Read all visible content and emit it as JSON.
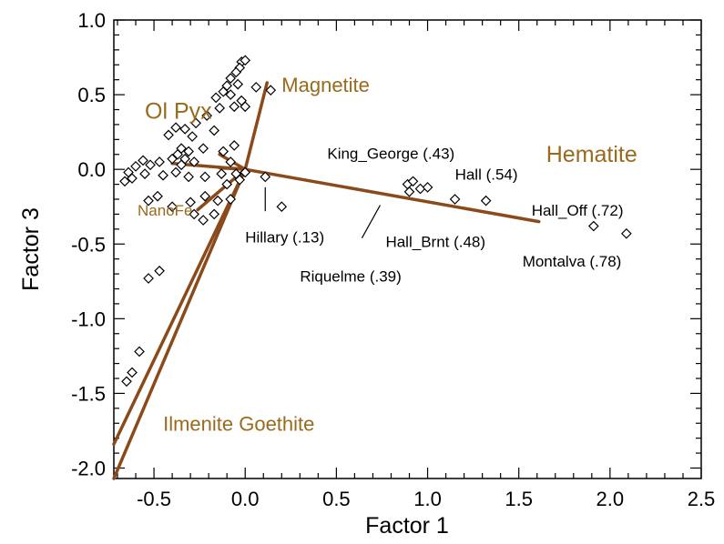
{
  "chart_data": {
    "type": "scatter",
    "xlabel": "Factor 1",
    "ylabel": "Factor 3",
    "xlim": [
      -0.72,
      2.5
    ],
    "ylim": [
      -2.07,
      1.0
    ],
    "x_ticks": [
      -0.5,
      0.0,
      0.5,
      1.0,
      1.5,
      2.0,
      2.5
    ],
    "x_tick_labels": [
      "-0.5",
      "0.0",
      "0.5",
      "1.0",
      "1.5",
      "2.0",
      "2.5"
    ],
    "y_ticks": [
      1.0,
      0.5,
      0.0,
      -0.5,
      -1.0,
      -1.5,
      -2.0
    ],
    "y_tick_labels": [
      "1.0",
      "0.5",
      "0.0",
      "-0.5",
      "-1.0",
      "-1.5",
      "-2.0"
    ],
    "grid": false,
    "colors": {
      "vector": "#8b4a1a",
      "mineral_label": "#9a6a1c",
      "points": "#000000"
    },
    "points": [
      [
        -0.02,
        0.72
      ],
      [
        0.0,
        0.73
      ],
      [
        -0.03,
        0.68
      ],
      [
        -0.05,
        0.65
      ],
      [
        -0.08,
        0.61
      ],
      [
        -0.04,
        0.57
      ],
      [
        -0.1,
        0.56
      ],
      [
        -0.12,
        0.52
      ],
      [
        0.06,
        0.55
      ],
      [
        0.14,
        0.53
      ],
      [
        -0.16,
        0.48
      ],
      [
        -0.08,
        0.5
      ],
      [
        -0.02,
        0.46
      ],
      [
        -0.06,
        0.42
      ],
      [
        0.0,
        0.42
      ],
      [
        -0.14,
        0.41
      ],
      [
        -0.21,
        0.36
      ],
      [
        -0.27,
        0.31
      ],
      [
        -0.33,
        0.27
      ],
      [
        -0.38,
        0.28
      ],
      [
        -0.42,
        0.23
      ],
      [
        -0.29,
        0.22
      ],
      [
        -0.17,
        0.26
      ],
      [
        -0.23,
        0.14
      ],
      [
        -0.06,
        0.16
      ],
      [
        -0.12,
        0.12
      ],
      [
        -0.35,
        0.14
      ],
      [
        -0.31,
        0.12
      ],
      [
        -0.37,
        0.1
      ],
      [
        -0.4,
        0.07
      ],
      [
        -0.33,
        0.07
      ],
      [
        -0.28,
        0.05
      ],
      [
        -0.35,
        0.03
      ],
      [
        -0.47,
        0.05
      ],
      [
        -0.56,
        0.06
      ],
      [
        -0.6,
        0.02
      ],
      [
        -0.64,
        -0.02
      ],
      [
        -0.55,
        -0.03
      ],
      [
        -0.52,
        0.03
      ],
      [
        -0.62,
        -0.06
      ],
      [
        -0.66,
        -0.08
      ],
      [
        -0.45,
        -0.04
      ],
      [
        -0.38,
        -0.02
      ],
      [
        -0.31,
        -0.05
      ],
      [
        -0.22,
        -0.05
      ],
      [
        -0.13,
        -0.03
      ],
      [
        -0.08,
        0.05
      ],
      [
        -0.05,
        -0.03
      ],
      [
        0.0,
        -0.02
      ],
      [
        -0.03,
        -0.07
      ],
      [
        -0.1,
        -0.1
      ],
      [
        -0.22,
        -0.18
      ],
      [
        -0.3,
        -0.22
      ],
      [
        -0.4,
        -0.25
      ],
      [
        -0.28,
        -0.3
      ],
      [
        -0.23,
        -0.34
      ],
      [
        -0.17,
        -0.3
      ],
      [
        -0.15,
        -0.21
      ],
      [
        -0.08,
        -0.2
      ],
      [
        -0.48,
        -0.18
      ],
      [
        -0.53,
        -0.21
      ],
      [
        0.11,
        -0.05
      ],
      [
        0.2,
        -0.25
      ],
      [
        0.89,
        -0.1
      ],
      [
        0.92,
        -0.08
      ],
      [
        0.96,
        -0.13
      ],
      [
        1.0,
        -0.12
      ],
      [
        1.15,
        -0.2
      ],
      [
        1.32,
        -0.21
      ],
      [
        0.9,
        -0.15
      ],
      [
        1.91,
        -0.38
      ],
      [
        2.09,
        -0.43
      ],
      [
        -0.47,
        -0.68
      ],
      [
        -0.53,
        -0.73
      ],
      [
        -0.58,
        -1.22
      ],
      [
        -0.62,
        -1.36
      ],
      [
        -0.65,
        -1.42
      ]
    ],
    "site_labels": [
      {
        "text": "King_George (.43)",
        "x": 0.45,
        "y": 0.07
      },
      {
        "text": "Hall (.54)",
        "x": 1.15,
        "y": -0.07
      },
      {
        "text": "Hall_Off (.72)",
        "x": 1.57,
        "y": -0.31
      },
      {
        "text": "Hillary (.13)",
        "x": 0.0,
        "y": -0.49
      },
      {
        "text": "Hall_Brnt (.48)",
        "x": 0.77,
        "y": -0.52
      },
      {
        "text": "Riquelme (.39)",
        "x": 0.3,
        "y": -0.75
      },
      {
        "text": "Montalva (.78)",
        "x": 1.52,
        "y": -0.65
      }
    ],
    "leader_lines": [
      [
        [
          0.11,
          -0.12
        ],
        [
          0.11,
          -0.28
        ]
      ],
      [
        [
          0.74,
          -0.24
        ],
        [
          0.64,
          -0.46
        ]
      ]
    ],
    "loading_vectors": [
      {
        "name": "Magnetite",
        "x": 0.12,
        "y": 0.58
      },
      {
        "name": "Hematite",
        "x": 1.61,
        "y": -0.35
      },
      {
        "name": "Ol Pyx",
        "x": -0.4,
        "y": 0.04
      },
      {
        "name": "NanoFe",
        "x": -0.26,
        "y": -0.27
      },
      {
        "name": "Ilmenite",
        "x": -0.72,
        "y": -2.07
      },
      {
        "name": "Goethite",
        "x": -0.72,
        "y": -1.84
      },
      {
        "name": "",
        "x": -0.14,
        "y": 0.1
      },
      {
        "name": "",
        "x": -0.14,
        "y": 0.01
      }
    ],
    "mineral_labels": [
      {
        "text": "Magnetite",
        "x": 0.2,
        "y": 0.52,
        "size": 22
      },
      {
        "text": "Ol Pyx",
        "x": -0.55,
        "y": 0.34,
        "size": 25
      },
      {
        "text": "Hematite",
        "x": 1.65,
        "y": 0.05,
        "size": 25
      },
      {
        "text": "NanoFe",
        "x": -0.59,
        "y": -0.31,
        "size": 17
      },
      {
        "text": "Ilmenite Goethite",
        "x": -0.45,
        "y": -1.75,
        "size": 22
      }
    ]
  }
}
